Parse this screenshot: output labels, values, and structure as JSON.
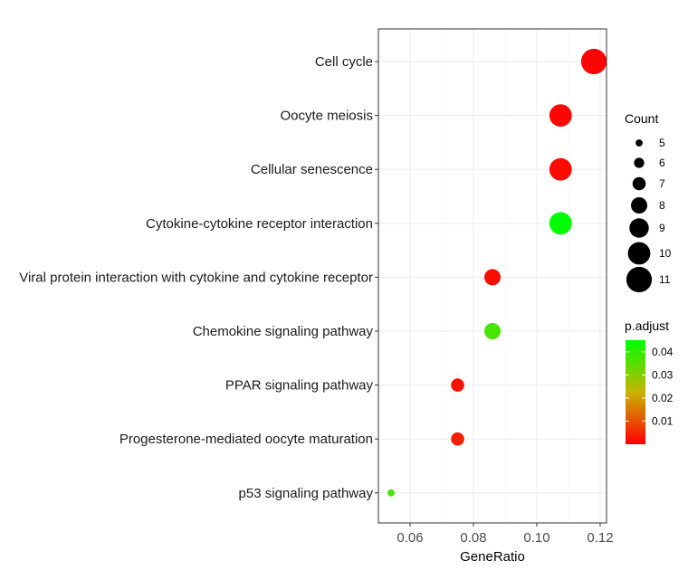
{
  "chart_data": {
    "type": "scatter",
    "xlabel": "GeneRatio",
    "xlim": [
      0.05,
      0.12
    ],
    "xticks": [
      "0.06",
      "0.08",
      "0.10",
      "0.12"
    ],
    "xtick_values": [
      0.06,
      0.08,
      0.1,
      0.12
    ],
    "grid": true,
    "legend_placement": "right",
    "points": [
      {
        "term": "Cell cycle",
        "gene_ratio": 0.118,
        "count": 11,
        "p_adjust": 0.0005
      },
      {
        "term": "Oocyte meiosis",
        "gene_ratio": 0.1075,
        "count": 10,
        "p_adjust": 0.0007
      },
      {
        "term": "Cellular senescence",
        "gene_ratio": 0.1075,
        "count": 10,
        "p_adjust": 0.0012
      },
      {
        "term": "Cytokine-cytokine receptor interaction",
        "gene_ratio": 0.1075,
        "count": 10,
        "p_adjust": 0.045
      },
      {
        "term": "Viral protein interaction with cytokine and cytokine receptor",
        "gene_ratio": 0.086,
        "count": 8,
        "p_adjust": 0.0015
      },
      {
        "term": "Chemokine signaling pathway",
        "gene_ratio": 0.086,
        "count": 8,
        "p_adjust": 0.037
      },
      {
        "term": "PPAR signaling pathway",
        "gene_ratio": 0.075,
        "count": 7,
        "p_adjust": 0.002
      },
      {
        "term": "Progesterone-mediated oocyte maturation",
        "gene_ratio": 0.075,
        "count": 7,
        "p_adjust": 0.004
      },
      {
        "term": "p53 signaling pathway",
        "gene_ratio": 0.054,
        "count": 5,
        "p_adjust": 0.038
      }
    ],
    "size_legend": {
      "title": "Count",
      "values": [
        5,
        6,
        7,
        8,
        9,
        10,
        11
      ],
      "labels": [
        "5",
        "6",
        "7",
        "8",
        "9",
        "10",
        "11"
      ]
    },
    "color_legend": {
      "title": "p.adjust",
      "min": 0.0,
      "max": 0.045,
      "ticks": [
        0.01,
        0.02,
        0.03,
        0.04
      ],
      "tick_labels": [
        "0.01",
        "0.02",
        "0.03",
        "0.04"
      ],
      "low_color": "#ff0000",
      "high_color": "#00ff00"
    }
  }
}
